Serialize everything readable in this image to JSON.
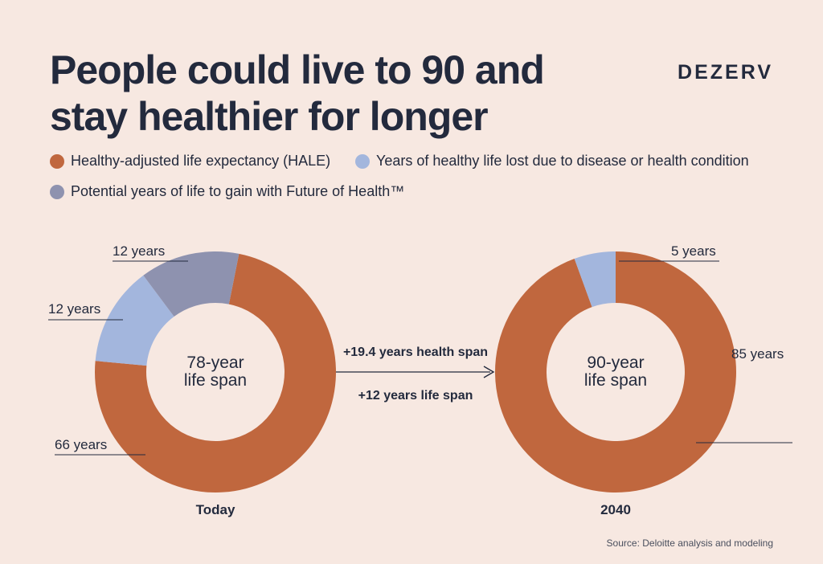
{
  "header": {
    "title_line1": "People could live to 90 and",
    "title_line2": "stay healthier for longer",
    "brand": "DEZERV"
  },
  "colors": {
    "background": "#f7e8e1",
    "hale": "#c0673e",
    "lost": "#a3b6dd",
    "potential": "#8e92af",
    "text": "#232a3d"
  },
  "legend": [
    {
      "label": "Healthy-adjusted life expectancy (HALE)",
      "color": "#c0673e"
    },
    {
      "label": "Years of healthy life lost due to disease or health condition",
      "color": "#a3b6dd"
    },
    {
      "label": "Potential years of life to gain with Future of Health™",
      "color": "#8e92af"
    }
  ],
  "chart_data": [
    {
      "type": "pie",
      "variant": "donut",
      "name": "Today",
      "center_label": [
        "78-year",
        "life span"
      ],
      "slices": [
        {
          "label": "66 years",
          "value": 66,
          "series": "Healthy-adjusted life expectancy (HALE)",
          "color": "#c0673e"
        },
        {
          "label": "12 years",
          "value": 12,
          "series": "Years of healthy life lost due to disease or health condition",
          "color": "#a3b6dd"
        },
        {
          "label": "12 years",
          "value": 12,
          "series": "Potential years of life to gain with Future of Health™",
          "color": "#8e92af"
        }
      ]
    },
    {
      "type": "pie",
      "variant": "donut",
      "name": "2040",
      "center_label": [
        "90-year",
        "life span"
      ],
      "slices": [
        {
          "label": "85 years",
          "value": 85,
          "series": "Healthy-adjusted life expectancy (HALE)",
          "color": "#c0673e"
        },
        {
          "label": "5 years",
          "value": 5,
          "series": "Years of healthy life lost due to disease or health condition",
          "color": "#a3b6dd"
        }
      ]
    }
  ],
  "transition": {
    "health_span": "+19.4 years health span",
    "life_span": "+12 years life span"
  },
  "source": "Source: Deloitte analysis and modeling"
}
